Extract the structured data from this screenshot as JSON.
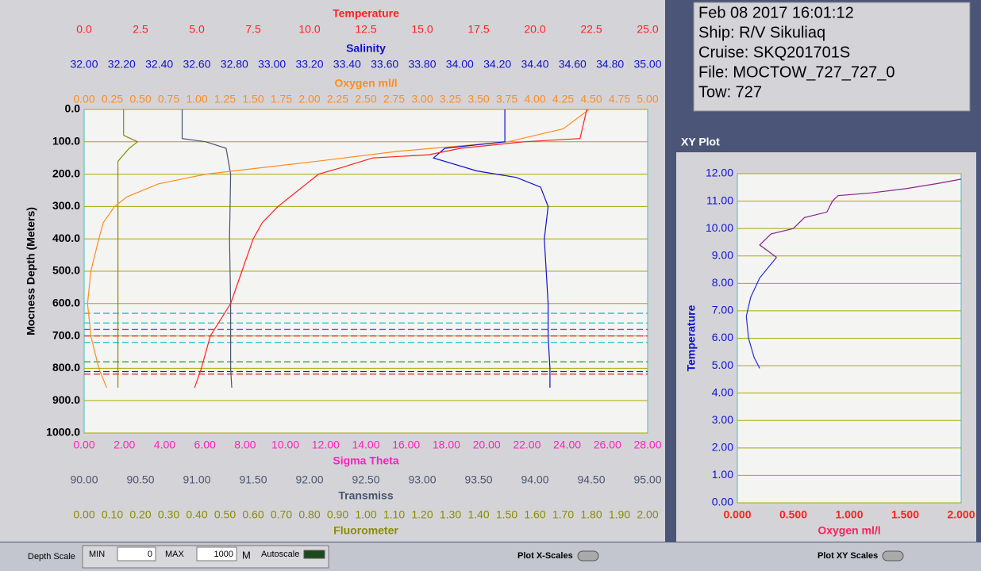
{
  "info": {
    "lines": [
      "Feb 08 2017 16:01:12",
      "Ship: R/V Sikuliaq",
      "Cruise: SKQ201701S",
      "File: MOCTOW_727_727_0",
      "Tow: 727"
    ]
  },
  "controls": {
    "depth_scale": "Depth Scale",
    "min_label": "MIN",
    "min_value": "0",
    "max_label": "MAX",
    "max_value": "1000",
    "unit": "M",
    "autoscale": "Autoscale",
    "plot_x_scales": "Plot X-Scales",
    "plot_xy_scales": "Plot XY Scales"
  },
  "chart_data": [
    {
      "type": "line",
      "y_label": "Mocness Depth (Meters)",
      "ylim": [
        0,
        1000
      ],
      "y_reversed": true,
      "grid": true,
      "grid_color": "#a8a800",
      "yticks": [
        {
          "value": 0,
          "label": "0.0"
        },
        {
          "value": 100,
          "label": "100.0"
        },
        {
          "value": 200,
          "label": "200.0"
        },
        {
          "value": 300,
          "label": "300.0"
        },
        {
          "value": 400,
          "label": "400.0"
        },
        {
          "value": 500,
          "label": "500.0"
        },
        {
          "value": 600,
          "label": "600.0"
        },
        {
          "value": 700,
          "label": "700.0"
        },
        {
          "value": 800,
          "label": "800.0"
        },
        {
          "value": 900,
          "label": "900.0"
        },
        {
          "value": 1000,
          "label": "1000.0"
        }
      ],
      "x_axes": [
        {
          "label": "Temperature",
          "side": "top",
          "color": "#ff2020",
          "xlim": [
            0,
            25
          ],
          "xticks": [
            {
              "value": 0,
              "label": "0.0"
            },
            2.5,
            {
              "value": 5,
              "label": "5.0"
            },
            7.5,
            {
              "value": 10,
              "label": "10.0"
            },
            12.5,
            {
              "value": 15,
              "label": "15.0"
            },
            17.5,
            {
              "value": 20,
              "label": "20.0"
            },
            22.5,
            {
              "value": 25,
              "label": "25.0"
            }
          ]
        },
        {
          "label": "Salinity",
          "side": "top",
          "color": "#1010d0",
          "xlim": [
            32,
            35
          ],
          "xticks": [
            {
              "value": 32,
              "label": "32.00"
            },
            {
              "value": 32.2,
              "label": "32.20"
            },
            {
              "value": 32.4,
              "label": "32.40"
            },
            {
              "value": 32.6,
              "label": "32.60"
            },
            {
              "value": 32.8,
              "label": "32.80"
            },
            {
              "value": 33,
              "label": "33.00"
            },
            {
              "value": 33.2,
              "label": "33.20"
            },
            {
              "value": 33.4,
              "label": "33.40"
            },
            {
              "value": 33.6,
              "label": "33.60"
            },
            {
              "value": 33.8,
              "label": "33.80"
            },
            {
              "value": 34,
              "label": "34.00"
            },
            {
              "value": 34.2,
              "label": "34.20"
            },
            {
              "value": 34.4,
              "label": "34.40"
            },
            {
              "value": 34.6,
              "label": "34.60"
            },
            {
              "value": 34.8,
              "label": "34.80"
            },
            {
              "value": 35,
              "label": "35.00"
            }
          ]
        },
        {
          "label": "Oxygen ml/l",
          "side": "top",
          "color": "#ff8c20",
          "xlim": [
            0,
            5
          ],
          "xticks": [
            {
              "value": 0,
              "label": "0.00"
            },
            0.25,
            {
              "value": 0.5,
              "label": "0.50"
            },
            0.75,
            {
              "value": 1,
              "label": "1.00"
            },
            1.25,
            {
              "value": 1.5,
              "label": "1.50"
            },
            1.75,
            {
              "value": 2,
              "label": "2.00"
            },
            2.25,
            {
              "value": 2.5,
              "label": "2.50"
            },
            2.75,
            {
              "value": 3,
              "label": "3.00"
            },
            3.25,
            {
              "value": 3.5,
              "label": "3.50"
            },
            3.75,
            {
              "value": 4,
              "label": "4.00"
            },
            4.25,
            {
              "value": 4.5,
              "label": "4.50"
            },
            4.75,
            {
              "value": 5,
              "label": "5.00"
            }
          ]
        },
        {
          "label": "Sigma Theta",
          "side": "bottom",
          "color": "#ff20c0",
          "xlim": [
            0,
            28
          ],
          "xticks": [
            {
              "value": 0,
              "label": "0.00"
            },
            {
              "value": 2,
              "label": "2.00"
            },
            {
              "value": 4,
              "label": "4.00"
            },
            {
              "value": 6,
              "label": "6.00"
            },
            {
              "value": 8,
              "label": "8.00"
            },
            {
              "value": 10,
              "label": "10.00"
            },
            {
              "value": 12,
              "label": "12.00"
            },
            {
              "value": 14,
              "label": "14.00"
            },
            {
              "value": 16,
              "label": "16.00"
            },
            {
              "value": 18,
              "label": "18.00"
            },
            {
              "value": 20,
              "label": "20.00"
            },
            {
              "value": 22,
              "label": "22.00"
            },
            {
              "value": 24,
              "label": "24.00"
            },
            {
              "value": 26,
              "label": "26.00"
            },
            {
              "value": 28,
              "label": "28.00"
            }
          ]
        },
        {
          "label": "Transmiss",
          "side": "bottom",
          "color": "#4a5470",
          "xlim": [
            90,
            95
          ],
          "xticks": [
            {
              "value": 90,
              "label": "90.00"
            },
            {
              "value": 90.5,
              "label": "90.50"
            },
            {
              "value": 91,
              "label": "91.00"
            },
            {
              "value": 91.5,
              "label": "91.50"
            },
            {
              "value": 92,
              "label": "92.00"
            },
            {
              "value": 92.5,
              "label": "92.50"
            },
            {
              "value": 93,
              "label": "93.00"
            },
            {
              "value": 93.5,
              "label": "93.50"
            },
            {
              "value": 94,
              "label": "94.00"
            },
            {
              "value": 94.5,
              "label": "94.50"
            },
            {
              "value": 95,
              "label": "95.00"
            }
          ]
        },
        {
          "label": "Fluorometer",
          "side": "bottom",
          "color": "#8b8b00",
          "xlim": [
            0,
            2
          ],
          "xticks": [
            {
              "value": 0,
              "label": "0.00"
            },
            {
              "value": 0.1,
              "label": "0.10"
            },
            {
              "value": 0.2,
              "label": "0.20"
            },
            {
              "value": 0.3,
              "label": "0.30"
            },
            {
              "value": 0.4,
              "label": "0.40"
            },
            {
              "value": 0.5,
              "label": "0.50"
            },
            {
              "value": 0.6,
              "label": "0.60"
            },
            {
              "value": 0.7,
              "label": "0.70"
            },
            {
              "value": 0.8,
              "label": "0.80"
            },
            {
              "value": 0.9,
              "label": "0.90"
            },
            {
              "value": 1,
              "label": "1.00"
            },
            {
              "value": 1.1,
              "label": "1.10"
            },
            {
              "value": 1.2,
              "label": "1.20"
            },
            {
              "value": 1.3,
              "label": "1.30"
            },
            {
              "value": 1.4,
              "label": "1.40"
            },
            {
              "value": 1.5,
              "label": "1.50"
            },
            {
              "value": 1.6,
              "label": "1.60"
            },
            {
              "value": 1.7,
              "label": "1.70"
            },
            {
              "value": 1.8,
              "label": "1.80"
            },
            {
              "value": 1.9,
              "label": "1.90"
            },
            {
              "value": 2,
              "label": "2.00"
            }
          ]
        }
      ],
      "series": [
        {
          "axis": 5,
          "color": "#8b8b00",
          "x": [
            0.14,
            0.14,
            0.19,
            0.16,
            0.12,
            0.12,
            0.12
          ],
          "depth": [
            0,
            80,
            100,
            120,
            160,
            300,
            860
          ]
        },
        {
          "axis": 4,
          "color": "#4a5470",
          "x": [
            90.87,
            90.87,
            91.08,
            91.26,
            91.3,
            91.29,
            91.3,
            91.3,
            91.3,
            91.31
          ],
          "depth": [
            0,
            90,
            100,
            120,
            200,
            400,
            600,
            700,
            800,
            860
          ]
        },
        {
          "axis": 2,
          "color": "#ff8c20",
          "x": [
            4.48,
            4.25,
            3.76,
            2.77,
            2.07,
            1.08,
            0.66,
            0.38,
            0.27,
            0.17,
            0.13,
            0.06,
            0.03,
            0.06,
            0.13,
            0.2
          ],
          "depth": [
            0,
            60,
            100,
            130,
            160,
            200,
            230,
            270,
            300,
            350,
            400,
            500,
            600,
            700,
            800,
            860
          ]
        },
        {
          "axis": 1,
          "color": "#1010d0",
          "x": [
            34.24,
            34.24,
            33.92,
            33.86,
            34.09,
            34.3,
            34.43,
            34.47,
            34.45,
            34.46,
            34.47,
            34.47,
            34.48,
            34.48
          ],
          "depth": [
            0,
            100,
            120,
            150,
            190,
            210,
            240,
            300,
            400,
            500,
            600,
            700,
            800,
            860
          ]
        },
        {
          "axis": 0,
          "color": "#ff2020",
          "x": [
            22.3,
            22,
            19.5,
            16.7,
            15.3,
            12.8,
            11.4,
            10.4,
            9.5,
            8.6,
            7.9,
            7.5,
            7,
            6.5,
            5.6,
            5.2,
            4.9
          ],
          "depth": [
            0,
            90,
            100,
            120,
            140,
            150,
            180,
            200,
            250,
            300,
            350,
            400,
            500,
            600,
            700,
            800,
            860
          ]
        }
      ],
      "markers": [
        {
          "depth": 630,
          "color": "#20c0c0"
        },
        {
          "depth": 660,
          "color": "#20c0c0"
        },
        {
          "depth": 680,
          "color": "#a040c0"
        },
        {
          "depth": 700,
          "color": "#e02020"
        },
        {
          "depth": 720,
          "color": "#20c0c0"
        },
        {
          "depth": 780,
          "color": "#20a020"
        },
        {
          "depth": 810,
          "color": "#2020e0"
        },
        {
          "depth": 818,
          "color": "#e02020"
        }
      ]
    },
    {
      "type": "line",
      "title": "XY Plot",
      "x_label": "Oxygen ml/l",
      "x_label_color": "#ff2060",
      "y_label": "Temperature",
      "y_label_color": "#1010d0",
      "tick_x_color": "#ff2020",
      "tick_y_color": "#1010d0",
      "grid": true,
      "grid_color": "#a8a800",
      "xlim": [
        0,
        2
      ],
      "xticks": [
        {
          "value": 0,
          "label": "0.000"
        },
        {
          "value": 0.5,
          "label": "0.500"
        },
        {
          "value": 1,
          "label": "1.000"
        },
        {
          "value": 1.5,
          "label": "1.500"
        },
        {
          "value": 2,
          "label": "2.000"
        }
      ],
      "ylim": [
        0,
        12
      ],
      "yticks": [
        {
          "value": 0,
          "label": "0.00"
        },
        {
          "value": 1,
          "label": "1.00"
        },
        {
          "value": 2,
          "label": "2.00"
        },
        {
          "value": 3,
          "label": "3.00"
        },
        {
          "value": 4,
          "label": "4.00"
        },
        {
          "value": 5,
          "label": "5.00"
        },
        {
          "value": 6,
          "label": "6.00"
        },
        {
          "value": 7,
          "label": "7.00"
        },
        {
          "value": 8,
          "label": "8.00"
        },
        {
          "value": 9,
          "label": "9.00"
        },
        {
          "value": 10,
          "label": "10.00"
        },
        {
          "value": 11,
          "label": "11.00"
        },
        {
          "value": 12,
          "label": "12.00"
        }
      ],
      "series": [
        {
          "color": "#2030d0",
          "x": [
            0.2,
            0.15,
            0.1,
            0.08,
            0.12,
            0.2,
            0.35
          ],
          "values": [
            4.9,
            5.3,
            6,
            6.8,
            7.5,
            8.2,
            8.95
          ]
        },
        {
          "color": "#8a2090",
          "x": [
            0.35,
            0.2,
            0.3,
            0.5,
            0.6,
            0.8,
            0.85,
            0.9,
            1.2,
            1.5,
            1.8,
            2
          ],
          "values": [
            8.95,
            9.4,
            9.8,
            10,
            10.4,
            10.6,
            11,
            11.2,
            11.3,
            11.45,
            11.65,
            11.8
          ]
        }
      ]
    }
  ]
}
